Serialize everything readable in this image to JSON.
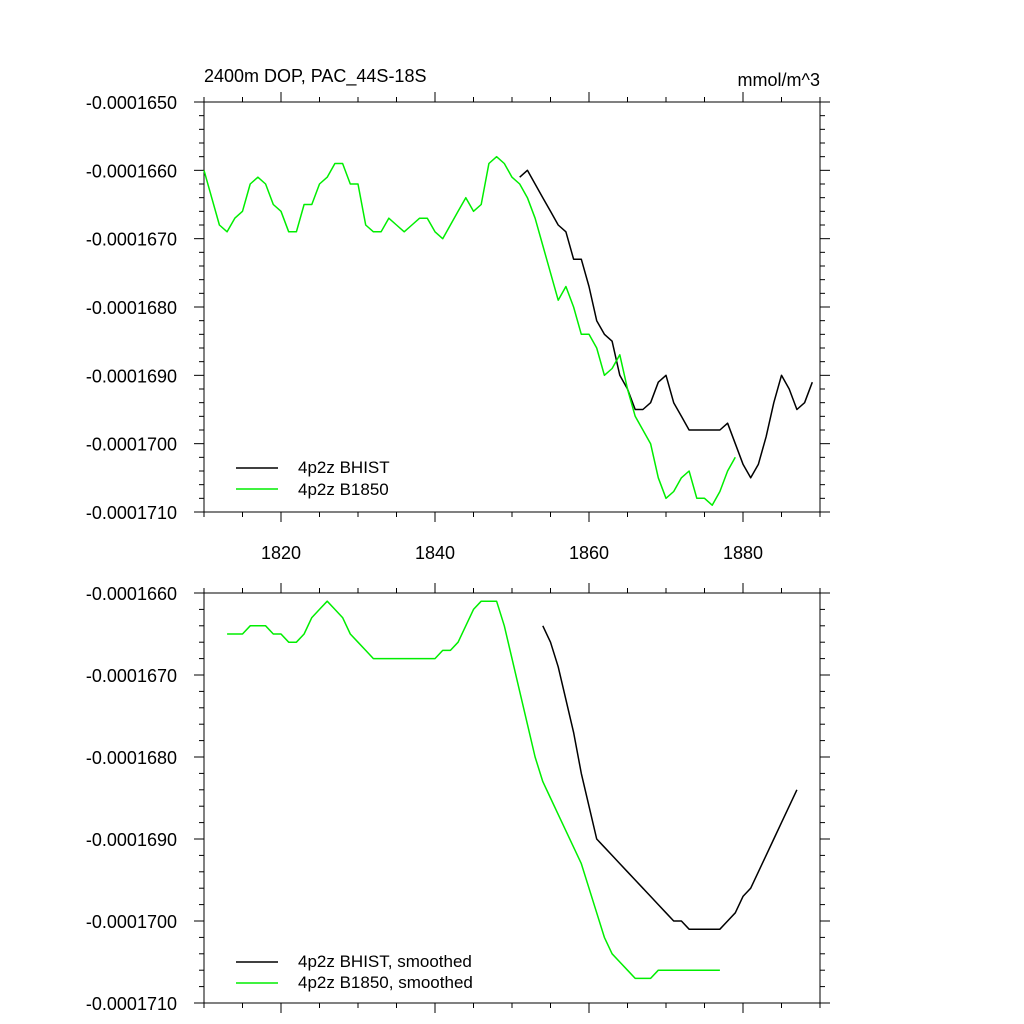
{
  "colors": {
    "bhist": "#000000",
    "b1850": "#00ee00",
    "axis": "#000000"
  },
  "chart_data": [
    {
      "type": "line",
      "title": "2400m DOP, PAC_44S-18S",
      "units": "mmol/m^3",
      "xlim": [
        1810,
        1890
      ],
      "ylim": [
        -0.000171,
        -0.000165
      ],
      "xticks": [
        1820,
        1840,
        1860,
        1880
      ],
      "xtick_labels": [
        "1820",
        "1840",
        "1860",
        "1880"
      ],
      "yticks": [
        -0.000165,
        -0.000166,
        -0.000167,
        -0.000168,
        -0.000169,
        -0.00017,
        -0.000171
      ],
      "ytick_labels": [
        "-0.0001650",
        "-0.0001660",
        "-0.0001670",
        "-0.0001680",
        "-0.0001690",
        "-0.0001700",
        "-0.0001710"
      ],
      "legend_position": "bottom-left",
      "series": [
        {
          "name": "4p2z BHIST",
          "color_key": "bhist",
          "x": [
            1851,
            1852,
            1853,
            1854,
            1855,
            1856,
            1857,
            1858,
            1859,
            1860,
            1861,
            1862,
            1863,
            1864,
            1865,
            1866,
            1867,
            1868,
            1869,
            1870,
            1871,
            1872,
            1873,
            1874,
            1875,
            1876,
            1877,
            1878,
            1879,
            1880,
            1881,
            1882,
            1883,
            1884,
            1885,
            1886,
            1887,
            1888,
            1889
          ],
          "y": [
            -0.0001661,
            -0.000166,
            -0.0001662,
            -0.0001664,
            -0.0001666,
            -0.0001668,
            -0.0001669,
            -0.0001673,
            -0.0001673,
            -0.0001677,
            -0.0001682,
            -0.0001684,
            -0.0001685,
            -0.000169,
            -0.0001692,
            -0.0001695,
            -0.0001695,
            -0.0001694,
            -0.0001691,
            -0.000169,
            -0.0001694,
            -0.0001696,
            -0.0001698,
            -0.0001698,
            -0.0001698,
            -0.0001698,
            -0.0001698,
            -0.0001697,
            -0.00017,
            -0.0001703,
            -0.0001705,
            -0.0001703,
            -0.0001699,
            -0.0001694,
            -0.000169,
            -0.0001692,
            -0.0001695,
            -0.0001694,
            -0.0001691
          ]
        },
        {
          "name": "4p2z B1850",
          "color_key": "b1850",
          "x": [
            1810,
            1811,
            1812,
            1813,
            1814,
            1815,
            1816,
            1817,
            1818,
            1819,
            1820,
            1821,
            1822,
            1823,
            1824,
            1825,
            1826,
            1827,
            1828,
            1829,
            1830,
            1831,
            1832,
            1833,
            1834,
            1835,
            1836,
            1837,
            1838,
            1839,
            1840,
            1841,
            1842,
            1843,
            1844,
            1845,
            1846,
            1847,
            1848,
            1849,
            1850,
            1851,
            1852,
            1853,
            1854,
            1855,
            1856,
            1857,
            1858,
            1859,
            1860,
            1861,
            1862,
            1863,
            1864,
            1865,
            1866,
            1867,
            1868,
            1869,
            1870,
            1871,
            1872,
            1873,
            1874,
            1875,
            1876,
            1877,
            1878,
            1879
          ],
          "y": [
            -0.000166,
            -0.0001664,
            -0.0001668,
            -0.0001669,
            -0.0001667,
            -0.0001666,
            -0.0001662,
            -0.0001661,
            -0.0001662,
            -0.0001665,
            -0.0001666,
            -0.0001669,
            -0.0001669,
            -0.0001665,
            -0.0001665,
            -0.0001662,
            -0.0001661,
            -0.0001659,
            -0.0001659,
            -0.0001662,
            -0.0001662,
            -0.0001668,
            -0.0001669,
            -0.0001669,
            -0.0001667,
            -0.0001668,
            -0.0001669,
            -0.0001668,
            -0.0001667,
            -0.0001667,
            -0.0001669,
            -0.000167,
            -0.0001668,
            -0.0001666,
            -0.0001664,
            -0.0001666,
            -0.0001665,
            -0.0001659,
            -0.0001658,
            -0.0001659,
            -0.0001661,
            -0.0001662,
            -0.0001664,
            -0.0001667,
            -0.0001671,
            -0.0001675,
            -0.0001679,
            -0.0001677,
            -0.000168,
            -0.0001684,
            -0.0001684,
            -0.0001686,
            -0.000169,
            -0.0001689,
            -0.0001687,
            -0.0001692,
            -0.0001696,
            -0.0001698,
            -0.00017,
            -0.0001705,
            -0.0001708,
            -0.0001707,
            -0.0001705,
            -0.0001704,
            -0.0001708,
            -0.0001708,
            -0.0001709,
            -0.0001707,
            -0.0001704,
            -0.0001702
          ]
        }
      ]
    },
    {
      "type": "line",
      "title": "",
      "units": "",
      "xlim": [
        1810,
        1890
      ],
      "ylim": [
        -0.000171,
        -0.000166
      ],
      "xticks": [
        1820,
        1840,
        1860,
        1880
      ],
      "xtick_labels": [],
      "yticks": [
        -0.000166,
        -0.000167,
        -0.000168,
        -0.000169,
        -0.00017,
        -0.000171
      ],
      "ytick_labels": [
        "-0.0001660",
        "-0.0001670",
        "-0.0001680",
        "-0.0001690",
        "-0.0001700",
        "-0.0001710"
      ],
      "legend_position": "bottom-left",
      "series": [
        {
          "name": "4p2z BHIST, smoothed",
          "color_key": "bhist",
          "x": [
            1854,
            1855,
            1856,
            1857,
            1858,
            1859,
            1860,
            1861,
            1862,
            1863,
            1864,
            1865,
            1866,
            1867,
            1868,
            1869,
            1870,
            1871,
            1872,
            1873,
            1874,
            1875,
            1876,
            1877,
            1878,
            1879,
            1880,
            1881,
            1882,
            1883,
            1884,
            1885,
            1886,
            1887
          ],
          "y": [
            -0.0001664,
            -0.0001666,
            -0.0001669,
            -0.0001673,
            -0.0001677,
            -0.0001682,
            -0.0001686,
            -0.000169,
            -0.0001691,
            -0.0001692,
            -0.0001693,
            -0.0001694,
            -0.0001695,
            -0.0001696,
            -0.0001697,
            -0.0001698,
            -0.0001699,
            -0.00017,
            -0.00017,
            -0.0001701,
            -0.0001701,
            -0.0001701,
            -0.0001701,
            -0.0001701,
            -0.00017,
            -0.0001699,
            -0.0001697,
            -0.0001696,
            -0.0001694,
            -0.0001692,
            -0.000169,
            -0.0001688,
            -0.0001686,
            -0.0001684
          ]
        },
        {
          "name": "4p2z B1850, smoothed",
          "color_key": "b1850",
          "x": [
            1813,
            1814,
            1815,
            1816,
            1817,
            1818,
            1819,
            1820,
            1821,
            1822,
            1823,
            1824,
            1825,
            1826,
            1827,
            1828,
            1829,
            1830,
            1831,
            1832,
            1833,
            1834,
            1835,
            1836,
            1837,
            1838,
            1839,
            1840,
            1841,
            1842,
            1843,
            1844,
            1845,
            1846,
            1847,
            1848,
            1849,
            1850,
            1851,
            1852,
            1853,
            1854,
            1855,
            1856,
            1857,
            1858,
            1859,
            1860,
            1861,
            1862,
            1863,
            1864,
            1865,
            1866,
            1867,
            1868,
            1869,
            1870,
            1871,
            1872,
            1873,
            1874,
            1875,
            1876,
            1877
          ],
          "y": [
            -0.0001665,
            -0.0001665,
            -0.0001665,
            -0.0001664,
            -0.0001664,
            -0.0001664,
            -0.0001665,
            -0.0001665,
            -0.0001666,
            -0.0001666,
            -0.0001665,
            -0.0001663,
            -0.0001662,
            -0.0001661,
            -0.0001662,
            -0.0001663,
            -0.0001665,
            -0.0001666,
            -0.0001667,
            -0.0001668,
            -0.0001668,
            -0.0001668,
            -0.0001668,
            -0.0001668,
            -0.0001668,
            -0.0001668,
            -0.0001668,
            -0.0001668,
            -0.0001667,
            -0.0001667,
            -0.0001666,
            -0.0001664,
            -0.0001662,
            -0.0001661,
            -0.0001661,
            -0.0001661,
            -0.0001664,
            -0.0001668,
            -0.0001672,
            -0.0001676,
            -0.000168,
            -0.0001683,
            -0.0001685,
            -0.0001687,
            -0.0001689,
            -0.0001691,
            -0.0001693,
            -0.0001696,
            -0.0001699,
            -0.0001702,
            -0.0001704,
            -0.0001705,
            -0.0001706,
            -0.0001707,
            -0.0001707,
            -0.0001707,
            -0.0001706,
            -0.0001706,
            -0.0001706,
            -0.0001706,
            -0.0001706,
            -0.0001706,
            -0.0001706,
            -0.0001706,
            -0.0001706
          ]
        }
      ]
    }
  ]
}
